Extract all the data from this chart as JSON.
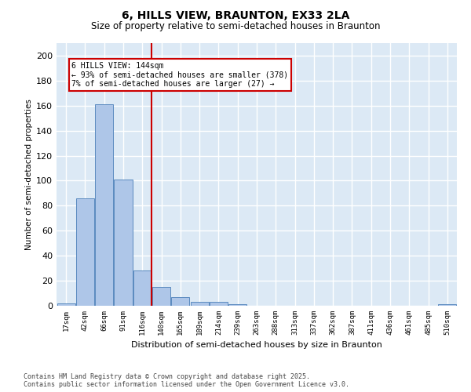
{
  "title": "6, HILLS VIEW, BRAUNTON, EX33 2LA",
  "subtitle": "Size of property relative to semi-detached houses in Braunton",
  "xlabel": "Distribution of semi-detached houses by size in Braunton",
  "ylabel": "Number of semi-detached properties",
  "categories": [
    "17sqm",
    "42sqm",
    "66sqm",
    "91sqm",
    "116sqm",
    "140sqm",
    "165sqm",
    "189sqm",
    "214sqm",
    "239sqm",
    "263sqm",
    "288sqm",
    "313sqm",
    "337sqm",
    "362sqm",
    "387sqm",
    "411sqm",
    "436sqm",
    "461sqm",
    "485sqm",
    "510sqm"
  ],
  "values": [
    2,
    86,
    161,
    101,
    28,
    15,
    7,
    3,
    3,
    1,
    0,
    0,
    0,
    0,
    0,
    0,
    0,
    0,
    0,
    0,
    1
  ],
  "bar_color": "#aec6e8",
  "bar_edge_color": "#5a8abf",
  "vline_x": 4.5,
  "vline_label": "6 HILLS VIEW: 144sqm",
  "annotation_line1": "← 93% of semi-detached houses are smaller (378)",
  "annotation_line2": "7% of semi-detached houses are larger (27) →",
  "ylim": [
    0,
    210
  ],
  "yticks": [
    0,
    20,
    40,
    60,
    80,
    100,
    120,
    140,
    160,
    180,
    200
  ],
  "background_color": "#dce9f5",
  "grid_color": "#ffffff",
  "footer_line1": "Contains HM Land Registry data © Crown copyright and database right 2025.",
  "footer_line2": "Contains public sector information licensed under the Open Government Licence v3.0.",
  "title_fontsize": 10,
  "subtitle_fontsize": 8.5,
  "annotation_box_color": "#ffffff",
  "annotation_box_edge": "#cc0000",
  "vline_color": "#cc0000"
}
